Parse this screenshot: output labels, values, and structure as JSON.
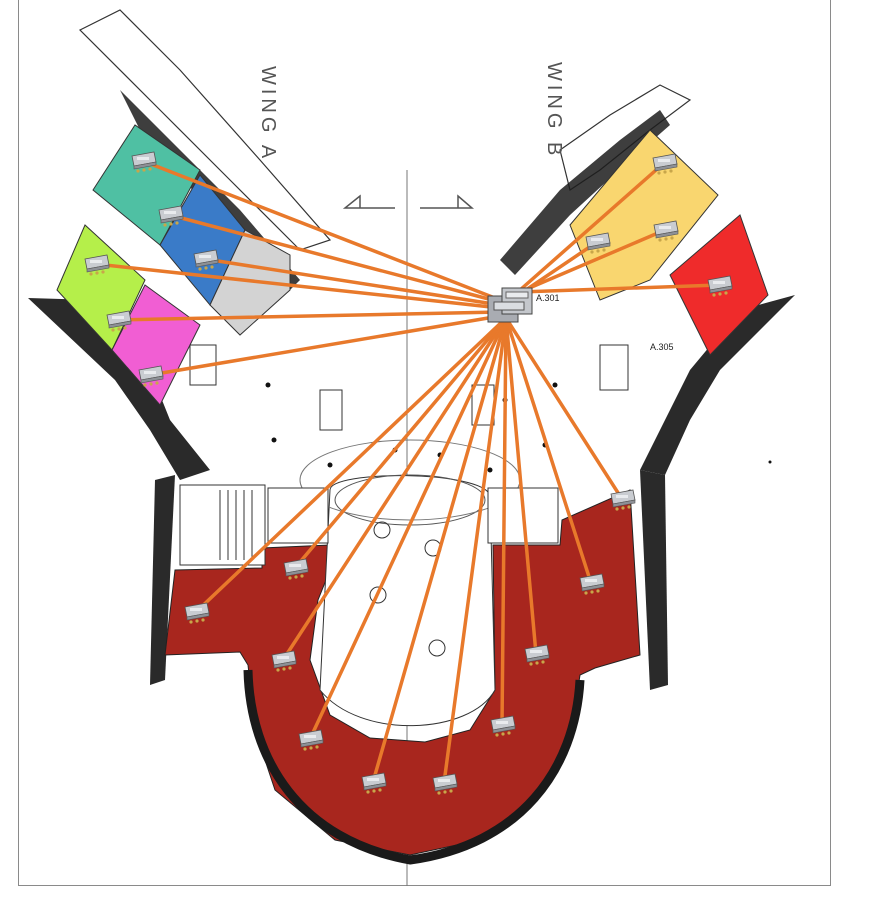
{
  "labels": {
    "wing_a": "WING A",
    "wing_b": "WING B",
    "room_301": "A.301",
    "room_305": "A.305"
  },
  "colors": {
    "link": "#e8792b",
    "teal": "#4fc0a3",
    "blue": "#3a7bc8",
    "grey": "#d3d3d3",
    "lime": "#b5ef4a",
    "pink": "#f15ed3",
    "yellow": "#f9d66f",
    "red": "#ef2b2b",
    "maroon": "#a8261e",
    "wall": "#1a1a1a"
  },
  "hub": {
    "name": "network-switch-hub"
  },
  "devices": [
    {
      "name": "access-point-teal"
    },
    {
      "name": "access-point-blue"
    },
    {
      "name": "access-point-grey"
    },
    {
      "name": "access-point-lime"
    },
    {
      "name": "access-point-pink-upper"
    },
    {
      "name": "access-point-pink-lower"
    },
    {
      "name": "access-point-yellow-top"
    },
    {
      "name": "access-point-yellow-mid"
    },
    {
      "name": "access-point-yellow-left"
    },
    {
      "name": "access-point-red"
    },
    {
      "name": "access-point-south-1"
    },
    {
      "name": "access-point-south-2"
    },
    {
      "name": "access-point-south-3"
    },
    {
      "name": "access-point-south-4"
    },
    {
      "name": "access-point-south-5"
    },
    {
      "name": "access-point-south-6"
    },
    {
      "name": "access-point-south-7"
    },
    {
      "name": "access-point-south-8"
    },
    {
      "name": "access-point-south-9"
    },
    {
      "name": "access-point-south-10"
    }
  ]
}
